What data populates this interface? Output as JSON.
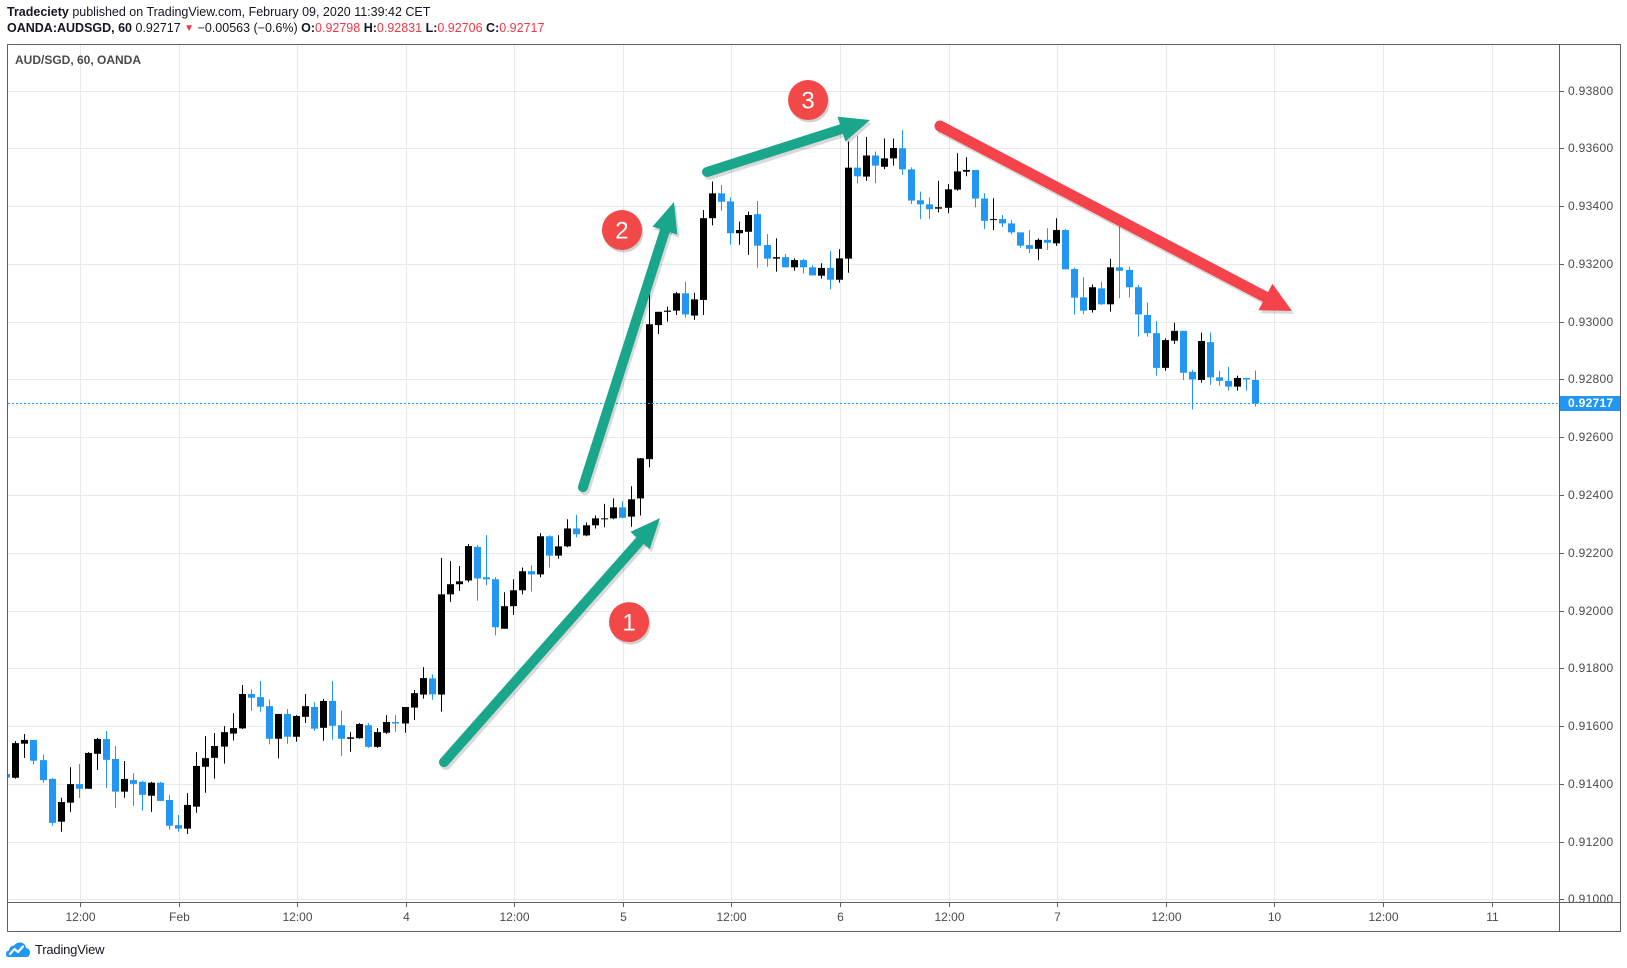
{
  "header": {
    "author": "Tradeciety",
    "published_text": " published on TradingView.com, February 09, 2020 11:39:42 CET",
    "symbol": "OANDA:AUDSGD, 60",
    "last": "0.92717",
    "change": "−0.00563 (−0.6%)",
    "open_label": "O:",
    "open": "0.92798",
    "high_label": "H:",
    "high": "0.92831",
    "low_label": "L:",
    "low": "0.92706",
    "close_label": "C:",
    "close": "0.92717"
  },
  "icons": {
    "change_direction": "▼"
  },
  "pane": {
    "title": "AUD/SGD, 60, OANDA"
  },
  "price_axis": {
    "current_price_label": "0.92717"
  },
  "footer": {
    "brand": "TradingView"
  },
  "colors": {
    "bull": "#000000",
    "bear": "#2196f3",
    "grid": "#e9e9ea",
    "current_line": "#2196f3",
    "teal_arrow": "#19a68a",
    "red_arrow": "#f4434b",
    "marker": "#f24848",
    "value_red": "#f23645"
  },
  "annotations": {
    "arrows": [
      {
        "name": "up-arrow-1",
        "color": "#19a68a",
        "tail": [
          48.36,
          0.91475
        ],
        "tip": [
          72.23,
          0.9232
        ],
        "width": 10,
        "head_length": 30,
        "head_half_width": 13
      },
      {
        "name": "up-arrow-2",
        "color": "#19a68a",
        "tail": [
          63.72,
          0.92427
        ],
        "tip": [
          73.78,
          0.93414
        ],
        "width": 10,
        "head_length": 30,
        "head_half_width": 13
      },
      {
        "name": "up-arrow-3",
        "color": "#19a68a",
        "tail": [
          77.43,
          0.93518
        ],
        "tip": [
          95.44,
          0.93698
        ],
        "width": 10,
        "head_length": 30,
        "head_half_width": 13
      },
      {
        "name": "down-arrow",
        "color": "#f4434b",
        "tail": [
          103.17,
          0.93677
        ],
        "tip": [
          142.07,
          0.93037
        ],
        "width": 11,
        "head_length": 30,
        "head_half_width": 15
      }
    ],
    "markers": [
      {
        "label": "1",
        "at": [
          68.81,
          0.9196
        ],
        "r": 20,
        "color": "#f24848"
      },
      {
        "label": "2",
        "at": [
          68.03,
          0.93317
        ],
        "r": 20,
        "color": "#f24848"
      },
      {
        "label": "3",
        "at": [
          88.59,
          0.93767
        ],
        "r": 20,
        "color": "#f24848"
      }
    ]
  },
  "chart_data": {
    "type": "candlestick",
    "title": "AUD/SGD, 60, OANDA",
    "symbol": "OANDA:AUDSGD",
    "interval": "60",
    "xlabel": "",
    "ylabel": "",
    "ylim": [
      0.90991,
      0.93961
    ],
    "grid": true,
    "legend_position": "top-left",
    "current_price": 0.92717,
    "y_ticks": [
      "0.93800",
      "0.93600",
      "0.93400",
      "0.93200",
      "0.93000",
      "0.92800",
      "0.92600",
      "0.92400",
      "0.92200",
      "0.92000",
      "0.91800",
      "0.91600",
      "0.91400",
      "0.91200",
      "0.91000"
    ],
    "x_ticks": [
      {
        "label": "12:00",
        "index": 8
      },
      {
        "label": "Feb",
        "index": 19
      },
      {
        "label": "12:00",
        "index": 32
      },
      {
        "label": "4",
        "index": 44
      },
      {
        "label": "12:00",
        "index": 56
      },
      {
        "label": "5",
        "index": 68
      },
      {
        "label": "12:00",
        "index": 80
      },
      {
        "label": "6",
        "index": 92
      },
      {
        "label": "12:00",
        "index": 104
      },
      {
        "label": "7",
        "index": 116
      },
      {
        "label": "12:00",
        "index": 128
      },
      {
        "label": "10",
        "index": 140
      },
      {
        "label": "12:00",
        "index": 152
      },
      {
        "label": "11",
        "index": 164
      }
    ],
    "series": [
      {
        "name": "AUD/SGD",
        "ohlc_order": [
          "open",
          "high",
          "low",
          "close"
        ],
        "ohlc": [
          [
            0.91434,
            0.91434,
            0.91422,
            0.91422
          ],
          [
            0.91421,
            0.91548,
            0.91418,
            0.91541
          ],
          [
            0.91539,
            0.91572,
            0.9149,
            0.91552
          ],
          [
            0.91552,
            0.91552,
            0.91467,
            0.9148
          ],
          [
            0.91482,
            0.91501,
            0.91404,
            0.91413
          ],
          [
            0.91417,
            0.9142,
            0.91255,
            0.91265
          ],
          [
            0.91269,
            0.91352,
            0.91234,
            0.91337
          ],
          [
            0.91335,
            0.91458,
            0.91302,
            0.91399
          ],
          [
            0.91399,
            0.91469,
            0.91351,
            0.91383
          ],
          [
            0.91383,
            0.9151,
            0.91383,
            0.91507
          ],
          [
            0.91504,
            0.91559,
            0.91448,
            0.91555
          ],
          [
            0.91555,
            0.91583,
            0.91386,
            0.91483
          ],
          [
            0.91486,
            0.91531,
            0.91317,
            0.91373
          ],
          [
            0.91373,
            0.91479,
            0.91352,
            0.91417
          ],
          [
            0.91413,
            0.91437,
            0.91324,
            0.914
          ],
          [
            0.91407,
            0.91411,
            0.91307,
            0.91362
          ],
          [
            0.91359,
            0.91407,
            0.91303,
            0.91404
          ],
          [
            0.91404,
            0.91407,
            0.9134,
            0.91341
          ],
          [
            0.91344,
            0.91361,
            0.91241,
            0.91255
          ],
          [
            0.91257,
            0.91292,
            0.91234,
            0.91245
          ],
          [
            0.91245,
            0.91368,
            0.91227,
            0.91327
          ],
          [
            0.91321,
            0.9151,
            0.913,
            0.91462
          ],
          [
            0.91459,
            0.91565,
            0.91369,
            0.91489
          ],
          [
            0.9149,
            0.91576,
            0.91418,
            0.91531
          ],
          [
            0.91529,
            0.916,
            0.9147,
            0.91579
          ],
          [
            0.91574,
            0.91645,
            0.9155,
            0.91593
          ],
          [
            0.91592,
            0.91742,
            0.9159,
            0.91711
          ],
          [
            0.91711,
            0.91727,
            0.91653,
            0.91698
          ],
          [
            0.917,
            0.91756,
            0.9165,
            0.91667
          ],
          [
            0.91669,
            0.91692,
            0.91537,
            0.91556
          ],
          [
            0.91556,
            0.91642,
            0.91488,
            0.91642
          ],
          [
            0.91642,
            0.91659,
            0.91539,
            0.91563
          ],
          [
            0.91563,
            0.91638,
            0.91546,
            0.91635
          ],
          [
            0.91632,
            0.91711,
            0.91611,
            0.91669
          ],
          [
            0.91666,
            0.91683,
            0.91584,
            0.91591
          ],
          [
            0.91594,
            0.91694,
            0.91549,
            0.91687
          ],
          [
            0.91687,
            0.91756,
            0.91553,
            0.91601
          ],
          [
            0.91603,
            0.91653,
            0.91497,
            0.91556
          ],
          [
            0.91556,
            0.91579,
            0.91511,
            0.91561
          ],
          [
            0.91558,
            0.9161,
            0.91556,
            0.91607
          ],
          [
            0.91603,
            0.9161,
            0.91525,
            0.91528
          ],
          [
            0.91528,
            0.91593,
            0.91525,
            0.91579
          ],
          [
            0.91577,
            0.91638,
            0.91573,
            0.91614
          ],
          [
            0.91614,
            0.91638,
            0.9158,
            0.91609
          ],
          [
            0.91609,
            0.91666,
            0.91577,
            0.91666
          ],
          [
            0.91664,
            0.91725,
            0.91621,
            0.91714
          ],
          [
            0.91709,
            0.91804,
            0.91695,
            0.91766
          ],
          [
            0.91765,
            0.91779,
            0.91691,
            0.9171
          ],
          [
            0.91709,
            0.92182,
            0.9165,
            0.92056
          ],
          [
            0.92056,
            0.92171,
            0.9203,
            0.92091
          ],
          [
            0.92091,
            0.92154,
            0.92068,
            0.92101
          ],
          [
            0.92104,
            0.9223,
            0.92098,
            0.92223
          ],
          [
            0.9222,
            0.92227,
            0.92034,
            0.92111
          ],
          [
            0.92115,
            0.92261,
            0.92087,
            0.92108
          ],
          [
            0.92108,
            0.92115,
            0.91914,
            0.91942
          ],
          [
            0.91937,
            0.92063,
            0.91937,
            0.92015
          ],
          [
            0.92015,
            0.92108,
            0.91985,
            0.9207
          ],
          [
            0.9207,
            0.92149,
            0.92056,
            0.92136
          ],
          [
            0.92136,
            0.92156,
            0.92066,
            0.92125
          ],
          [
            0.92125,
            0.92268,
            0.92115,
            0.92257
          ],
          [
            0.92257,
            0.9226,
            0.92149,
            0.9219
          ],
          [
            0.9219,
            0.92261,
            0.92179,
            0.92222
          ],
          [
            0.92222,
            0.92316,
            0.92219,
            0.92284
          ],
          [
            0.92284,
            0.92331,
            0.92253,
            0.92264
          ],
          [
            0.9226,
            0.92305,
            0.92257,
            0.92295
          ],
          [
            0.92295,
            0.92329,
            0.92284,
            0.92319
          ],
          [
            0.92317,
            0.92369,
            0.92288,
            0.92319
          ],
          [
            0.92319,
            0.92388,
            0.92316,
            0.92357
          ],
          [
            0.92357,
            0.92378,
            0.92319,
            0.92321
          ],
          [
            0.92325,
            0.9243,
            0.9229,
            0.92385
          ],
          [
            0.92388,
            0.92528,
            0.92329,
            0.92527
          ],
          [
            0.92524,
            0.93098,
            0.92496,
            0.92991
          ],
          [
            0.92988,
            0.93034,
            0.92957,
            0.93034
          ],
          [
            0.93034,
            0.93052,
            0.93,
            0.93038
          ],
          [
            0.93038,
            0.93103,
            0.93023,
            0.93098
          ],
          [
            0.93098,
            0.93138,
            0.93014,
            0.93025
          ],
          [
            0.93021,
            0.931,
            0.93006,
            0.93077
          ],
          [
            0.93075,
            0.93386,
            0.93023,
            0.93358
          ],
          [
            0.93358,
            0.93485,
            0.93333,
            0.93444
          ],
          [
            0.93444,
            0.93473,
            0.93384,
            0.93415
          ],
          [
            0.93416,
            0.9343,
            0.93266,
            0.93306
          ],
          [
            0.93306,
            0.93346,
            0.93266,
            0.93317
          ],
          [
            0.93311,
            0.93381,
            0.93231,
            0.93369
          ],
          [
            0.93372,
            0.93418,
            0.93187,
            0.93263
          ],
          [
            0.93265,
            0.93303,
            0.9319,
            0.93218
          ],
          [
            0.93218,
            0.93288,
            0.93173,
            0.93223
          ],
          [
            0.93223,
            0.93234,
            0.93188,
            0.93188
          ],
          [
            0.93188,
            0.93219,
            0.93176,
            0.93213
          ],
          [
            0.93213,
            0.93217,
            0.93166,
            0.93188
          ],
          [
            0.93188,
            0.93195,
            0.9316,
            0.9316
          ],
          [
            0.93159,
            0.93202,
            0.93149,
            0.93186
          ],
          [
            0.93186,
            0.93244,
            0.93111,
            0.93145
          ],
          [
            0.93145,
            0.93251,
            0.93135,
            0.93219
          ],
          [
            0.93218,
            0.93623,
            0.93169,
            0.93533
          ],
          [
            0.93533,
            0.93644,
            0.93479,
            0.93503
          ],
          [
            0.93502,
            0.93639,
            0.93487,
            0.93575
          ],
          [
            0.93575,
            0.93589,
            0.93479,
            0.9354
          ],
          [
            0.93536,
            0.93634,
            0.93528,
            0.93565
          ],
          [
            0.93565,
            0.93634,
            0.9354,
            0.93601
          ],
          [
            0.936,
            0.93663,
            0.93508,
            0.93527
          ],
          [
            0.93527,
            0.93534,
            0.93407,
            0.93419
          ],
          [
            0.9342,
            0.9345,
            0.93355,
            0.93406
          ],
          [
            0.93406,
            0.9343,
            0.93355,
            0.93389
          ],
          [
            0.93391,
            0.93487,
            0.93378,
            0.93396
          ],
          [
            0.93394,
            0.93476,
            0.93375,
            0.93458
          ],
          [
            0.93457,
            0.93583,
            0.93453,
            0.9352
          ],
          [
            0.93519,
            0.93569,
            0.93503,
            0.93525
          ],
          [
            0.93525,
            0.93525,
            0.93396,
            0.93426
          ],
          [
            0.93426,
            0.93445,
            0.9332,
            0.93349
          ],
          [
            0.93353,
            0.93427,
            0.93317,
            0.93355
          ],
          [
            0.93355,
            0.93369,
            0.93327,
            0.9334
          ],
          [
            0.9334,
            0.93352,
            0.93302,
            0.93309
          ],
          [
            0.93309,
            0.93309,
            0.93256,
            0.93263
          ],
          [
            0.93265,
            0.93317,
            0.93237,
            0.93252
          ],
          [
            0.93252,
            0.93288,
            0.93213,
            0.93283
          ],
          [
            0.93283,
            0.93323,
            0.93248,
            0.93273
          ],
          [
            0.93271,
            0.93358,
            0.93262,
            0.93317
          ],
          [
            0.93317,
            0.93321,
            0.93181,
            0.93181
          ],
          [
            0.93182,
            0.93187,
            0.93025,
            0.93083
          ],
          [
            0.93084,
            0.93153,
            0.93026,
            0.93038
          ],
          [
            0.9304,
            0.93129,
            0.93031,
            0.93119
          ],
          [
            0.93115,
            0.93138,
            0.93058,
            0.9306
          ],
          [
            0.9306,
            0.93217,
            0.93034,
            0.93188
          ],
          [
            0.93188,
            0.93329,
            0.93081,
            0.93176
          ],
          [
            0.93179,
            0.9319,
            0.93083,
            0.93119
          ],
          [
            0.93119,
            0.93127,
            0.92948,
            0.93025
          ],
          [
            0.93023,
            0.93066,
            0.92948,
            0.9296
          ],
          [
            0.9296,
            0.93002,
            0.92813,
            0.9284
          ],
          [
            0.9284,
            0.92942,
            0.9283,
            0.92936
          ],
          [
            0.92934,
            0.92996,
            0.92923,
            0.92968
          ],
          [
            0.92968,
            0.92968,
            0.92798,
            0.92823
          ],
          [
            0.92826,
            0.92833,
            0.92696,
            0.928
          ],
          [
            0.92798,
            0.92962,
            0.92789,
            0.92933
          ],
          [
            0.92929,
            0.92962,
            0.92781,
            0.92807
          ],
          [
            0.92807,
            0.92829,
            0.92778,
            0.92795
          ],
          [
            0.92795,
            0.92844,
            0.92761,
            0.92775
          ],
          [
            0.92775,
            0.92813,
            0.92761,
            0.92805
          ],
          [
            0.92805,
            0.92805,
            0.92761,
            0.928
          ],
          [
            0.92798,
            0.92831,
            0.92706,
            0.92717
          ]
        ]
      }
    ]
  }
}
